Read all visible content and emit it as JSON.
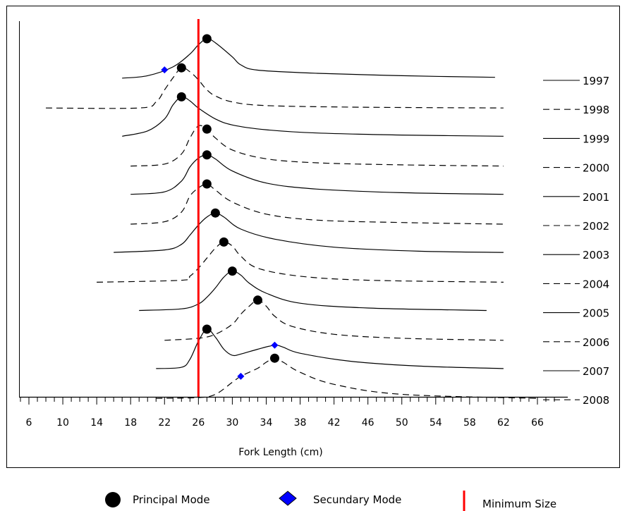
{
  "chart_data": {
    "type": "line",
    "title": "",
    "xlabel": "Fork Length (cm)",
    "ylabel": "",
    "xlim": [
      5,
      68
    ],
    "xticks": [
      6,
      10,
      14,
      18,
      22,
      26,
      30,
      34,
      38,
      42,
      46,
      50,
      54,
      58,
      62,
      66
    ],
    "grid": false,
    "minimum_size": 26,
    "colors": {
      "curve": "#000000",
      "principal_mode": "#000000",
      "secondary_mode": "#0000ff",
      "minimum_size": "#ff0000"
    },
    "series": [
      {
        "name": "1997",
        "style": "solid",
        "x": [
          17,
          20,
          23,
          25,
          26,
          27,
          28,
          30,
          31,
          33,
          40,
          50,
          61
        ],
        "y": [
          0.02,
          0.08,
          0.3,
          0.62,
          0.85,
          1.0,
          0.9,
          0.55,
          0.35,
          0.22,
          0.14,
          0.08,
          0.04
        ],
        "principal_mode": 27,
        "secondary_mode": 22
      },
      {
        "name": "1998",
        "style": "dashed",
        "x": [
          8,
          19,
          21,
          22,
          23,
          24,
          25,
          26,
          27,
          28,
          30,
          34,
          45,
          62
        ],
        "y": [
          0.0,
          0.0,
          0.15,
          0.45,
          0.75,
          1.0,
          0.9,
          0.7,
          0.45,
          0.3,
          0.15,
          0.06,
          0.02,
          0.0
        ],
        "principal_mode": 24
      },
      {
        "name": "1999",
        "style": "solid",
        "x": [
          17,
          20,
          22,
          23,
          24,
          25,
          26,
          28,
          30,
          34,
          40,
          50,
          62
        ],
        "y": [
          0.02,
          0.15,
          0.45,
          0.8,
          1.0,
          0.9,
          0.72,
          0.45,
          0.3,
          0.18,
          0.1,
          0.05,
          0.02
        ],
        "principal_mode": 24
      },
      {
        "name": "2000",
        "style": "dashed",
        "x": [
          18,
          22,
          24,
          25,
          26,
          27,
          28,
          30,
          34,
          40,
          50,
          62
        ],
        "y": [
          0.0,
          0.05,
          0.3,
          0.7,
          1.0,
          0.92,
          0.7,
          0.4,
          0.18,
          0.08,
          0.03,
          0.0
        ],
        "principal_mode": 27
      },
      {
        "name": "2001",
        "style": "solid",
        "x": [
          18,
          22,
          24,
          25,
          26,
          27,
          28,
          30,
          34,
          40,
          50,
          62
        ],
        "y": [
          0.02,
          0.08,
          0.35,
          0.7,
          0.92,
          1.0,
          0.9,
          0.6,
          0.3,
          0.15,
          0.06,
          0.02
        ],
        "principal_mode": 27
      },
      {
        "name": "2002",
        "style": "dashed",
        "x": [
          18,
          22,
          24,
          25,
          26,
          27,
          28,
          30,
          34,
          40,
          50,
          62
        ],
        "y": [
          0.0,
          0.06,
          0.3,
          0.7,
          0.9,
          1.0,
          0.85,
          0.55,
          0.25,
          0.1,
          0.04,
          0.0
        ],
        "principal_mode": 27
      },
      {
        "name": "2003",
        "style": "solid",
        "x": [
          16,
          22,
          24,
          25,
          26,
          27,
          28,
          29,
          31,
          35,
          42,
          52,
          62
        ],
        "y": [
          0.02,
          0.08,
          0.22,
          0.45,
          0.7,
          0.9,
          1.0,
          0.9,
          0.6,
          0.35,
          0.15,
          0.05,
          0.02
        ],
        "principal_mode": 28
      },
      {
        "name": "2004",
        "style": "dashed",
        "x": [
          14,
          24,
          25,
          26,
          27,
          28,
          29,
          30,
          31,
          33,
          38,
          46,
          62
        ],
        "y": [
          0.0,
          0.05,
          0.15,
          0.35,
          0.6,
          0.85,
          1.0,
          0.9,
          0.65,
          0.35,
          0.15,
          0.05,
          0.0
        ],
        "principal_mode": 29
      },
      {
        "name": "2005",
        "style": "solid",
        "x": [
          19,
          24,
          26,
          27,
          28,
          29,
          30,
          31,
          32,
          34,
          38,
          46,
          60
        ],
        "y": [
          0.02,
          0.06,
          0.18,
          0.35,
          0.58,
          0.85,
          1.0,
          0.9,
          0.7,
          0.45,
          0.2,
          0.08,
          0.02
        ],
        "principal_mode": 30
      },
      {
        "name": "2006",
        "style": "dashed",
        "x": [
          22,
          26,
          28,
          30,
          31,
          32,
          33,
          34,
          35,
          37,
          42,
          50,
          62
        ],
        "y": [
          0.0,
          0.05,
          0.15,
          0.4,
          0.65,
          0.85,
          1.0,
          0.85,
          0.6,
          0.35,
          0.15,
          0.05,
          0.0
        ],
        "principal_mode": 33
      },
      {
        "name": "2007",
        "style": "solid",
        "x": [
          21,
          24,
          25,
          26,
          27,
          28,
          29,
          30,
          31,
          33,
          35,
          36,
          38,
          44,
          52,
          62
        ],
        "y": [
          0.02,
          0.05,
          0.25,
          0.7,
          1.0,
          0.8,
          0.5,
          0.35,
          0.38,
          0.5,
          0.6,
          0.55,
          0.4,
          0.2,
          0.08,
          0.02
        ],
        "principal_mode": 27,
        "secondary_mode": 35
      },
      {
        "name": "2008",
        "style": "dashed",
        "x": [
          21,
          26,
          28,
          30,
          31,
          33,
          34,
          35,
          36,
          38,
          42,
          50,
          66
        ],
        "y": [
          0.0,
          0.02,
          0.1,
          0.4,
          0.55,
          0.75,
          0.9,
          1.0,
          0.9,
          0.65,
          0.35,
          0.1,
          0.0
        ],
        "principal_mode": 35,
        "secondary_mode": 31
      }
    ],
    "legend": {
      "position": "bottom",
      "principal": "Principal Mode",
      "secondary": "Secundary Mode",
      "minimum": "Minimum Size"
    }
  }
}
